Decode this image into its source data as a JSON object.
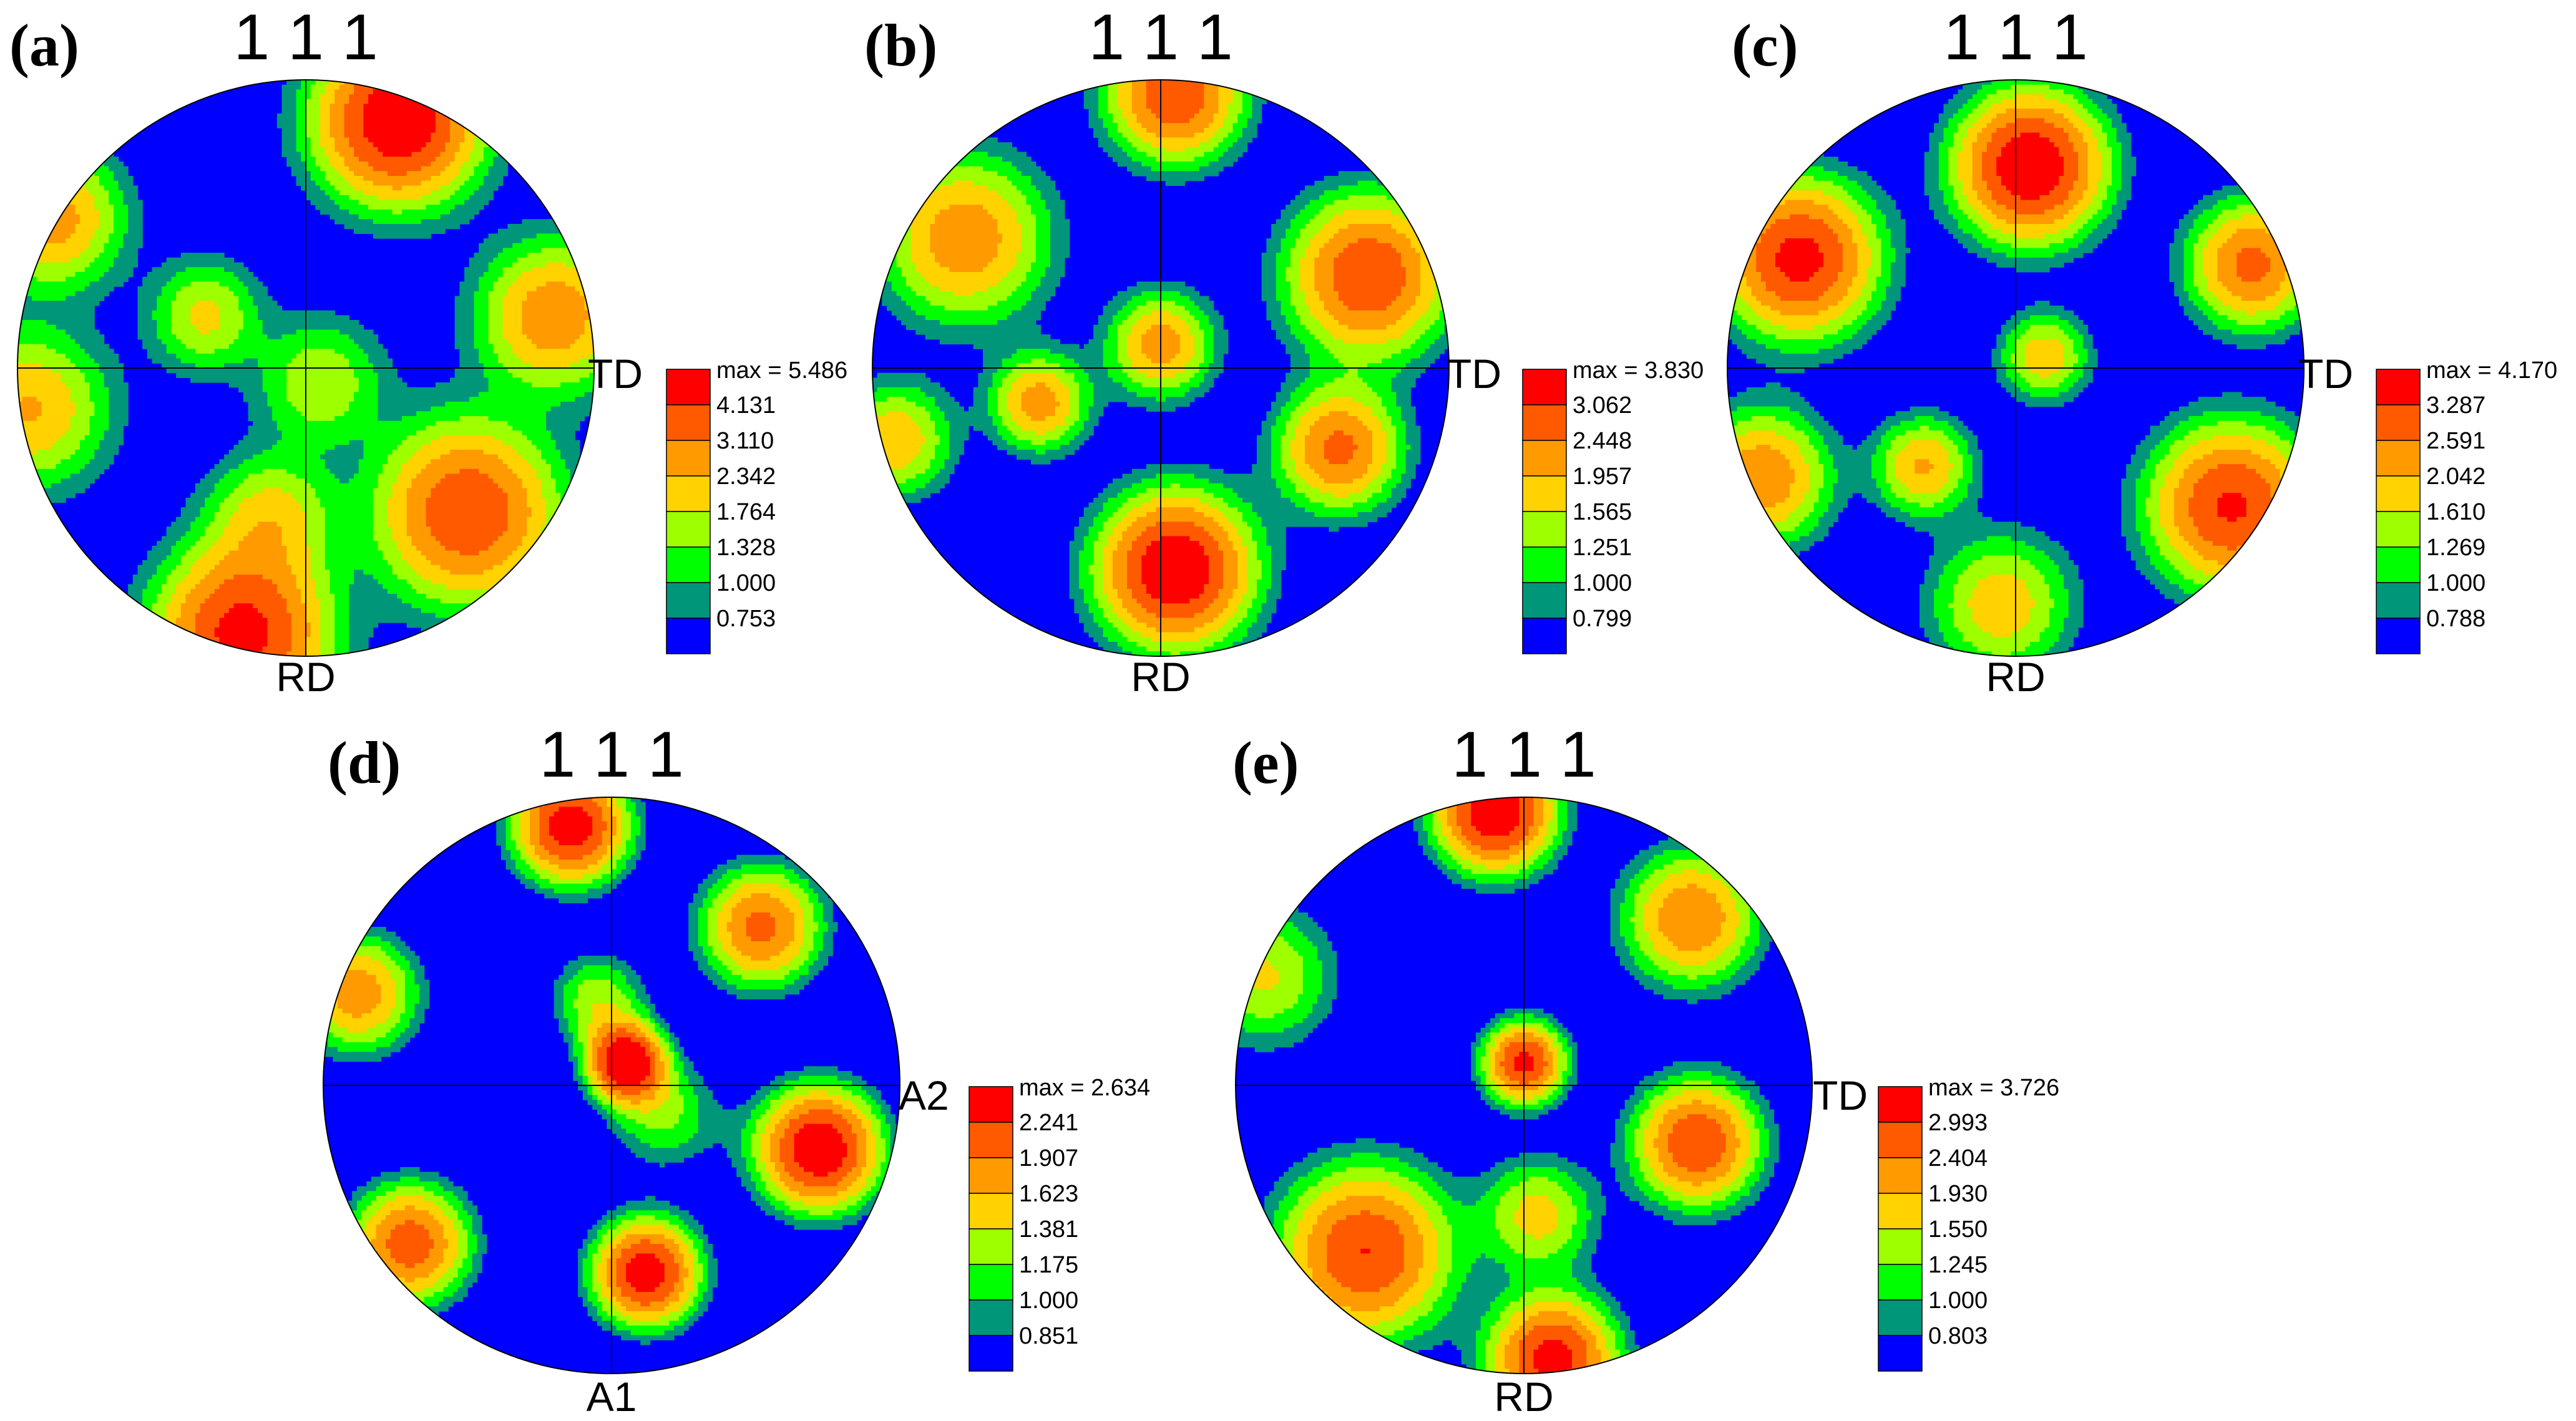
{
  "chart_data": [
    {
      "type": "heatmap",
      "panel_label": "(a)",
      "pole_label": "1 1 1",
      "axis_right": "TD",
      "axis_bottom": "RD",
      "legend_max": "max = 5.486",
      "levels": [
        "4.131",
        "3.110",
        "2.342",
        "1.764",
        "1.328",
        "1.000",
        "0.753"
      ],
      "peaks": [
        {
          "x": 0.32,
          "y": 0.86,
          "intensity": 5.3,
          "spread": 0.17
        },
        {
          "x": -0.22,
          "y": -0.92,
          "intensity": 4.6,
          "spread": 0.18
        },
        {
          "x": 0.56,
          "y": -0.5,
          "intensity": 4.0,
          "spread": 0.19
        },
        {
          "x": 0.86,
          "y": 0.18,
          "intensity": 2.9,
          "spread": 0.16
        },
        {
          "x": -0.88,
          "y": 0.52,
          "intensity": 2.7,
          "spread": 0.15
        },
        {
          "x": -0.96,
          "y": -0.14,
          "intensity": 2.4,
          "spread": 0.17
        },
        {
          "x": -0.35,
          "y": 0.18,
          "intensity": 1.9,
          "spread": 0.12
        },
        {
          "x": 0.05,
          "y": -0.05,
          "intensity": 1.7,
          "spread": 0.14
        },
        {
          "x": -0.12,
          "y": -0.52,
          "intensity": 2.0,
          "spread": 0.14
        }
      ]
    },
    {
      "type": "heatmap",
      "panel_label": "(b)",
      "pole_label": "1 1 1",
      "axis_right": "TD",
      "axis_bottom": "RD",
      "legend_max": "max = 3.830",
      "levels": [
        "3.062",
        "2.448",
        "1.957",
        "1.565",
        "1.251",
        "1.000",
        "0.799"
      ],
      "peaks": [
        {
          "x": 0.05,
          "y": -0.7,
          "intensity": 3.8,
          "spread": 0.17
        },
        {
          "x": 0.05,
          "y": 0.95,
          "intensity": 3.0,
          "spread": 0.15
        },
        {
          "x": 0.72,
          "y": 0.32,
          "intensity": 3.0,
          "spread": 0.18
        },
        {
          "x": 0.62,
          "y": -0.28,
          "intensity": 2.6,
          "spread": 0.14
        },
        {
          "x": -0.68,
          "y": 0.45,
          "intensity": 2.3,
          "spread": 0.19
        },
        {
          "x": -0.42,
          "y": -0.12,
          "intensity": 2.2,
          "spread": 0.11
        },
        {
          "x": -0.92,
          "y": -0.25,
          "intensity": 1.9,
          "spread": 0.13
        },
        {
          "x": 0.0,
          "y": 0.08,
          "intensity": 2.2,
          "spread": 0.12
        }
      ]
    },
    {
      "type": "heatmap",
      "panel_label": "(c)",
      "pole_label": "1 1 1",
      "axis_right": "TD",
      "axis_bottom": "RD",
      "legend_max": "max = 4.170",
      "levels": [
        "3.287",
        "2.591",
        "2.042",
        "1.610",
        "1.269",
        "1.000",
        "0.788"
      ],
      "peaks": [
        {
          "x": 0.05,
          "y": 0.7,
          "intensity": 4.1,
          "spread": 0.16
        },
        {
          "x": -0.75,
          "y": 0.38,
          "intensity": 3.6,
          "spread": 0.17
        },
        {
          "x": 0.75,
          "y": -0.48,
          "intensity": 3.4,
          "spread": 0.18
        },
        {
          "x": 0.82,
          "y": 0.36,
          "intensity": 2.8,
          "spread": 0.14
        },
        {
          "x": -0.88,
          "y": -0.38,
          "intensity": 2.5,
          "spread": 0.15
        },
        {
          "x": -0.32,
          "y": -0.34,
          "intensity": 2.1,
          "spread": 0.11
        },
        {
          "x": 0.1,
          "y": 0.04,
          "intensity": 1.9,
          "spread": 0.1
        },
        {
          "x": -0.05,
          "y": -0.82,
          "intensity": 1.9,
          "spread": 0.16
        }
      ]
    },
    {
      "type": "heatmap",
      "panel_label": "(d)",
      "pole_label": "1 1 1",
      "axis_right": "A2",
      "axis_bottom": "A1",
      "legend_max": "max = 2.634",
      "levels": [
        "2.241",
        "1.907",
        "1.623",
        "1.381",
        "1.175",
        "1.000",
        "0.851"
      ],
      "peaks": [
        {
          "x": 0.72,
          "y": -0.22,
          "intensity": 2.6,
          "spread": 0.15
        },
        {
          "x": 0.05,
          "y": 0.08,
          "intensity": 2.6,
          "spread": 0.09
        },
        {
          "x": -0.14,
          "y": 0.9,
          "intensity": 2.5,
          "spread": 0.14
        },
        {
          "x": 0.12,
          "y": -0.65,
          "intensity": 2.5,
          "spread": 0.13
        },
        {
          "x": -0.7,
          "y": -0.55,
          "intensity": 2.1,
          "spread": 0.15
        },
        {
          "x": 0.52,
          "y": 0.55,
          "intensity": 2.0,
          "spread": 0.15
        },
        {
          "x": -0.88,
          "y": 0.32,
          "intensity": 1.8,
          "spread": 0.15
        },
        {
          "x": -0.05,
          "y": 0.3,
          "intensity": 1.3,
          "spread": 0.12
        },
        {
          "x": 0.18,
          "y": -0.1,
          "intensity": 1.2,
          "spread": 0.14
        }
      ]
    },
    {
      "type": "heatmap",
      "panel_label": "(e)",
      "pole_label": "1 1 1",
      "axis_right": "TD",
      "axis_bottom": "RD",
      "legend_max": "max = 3.726",
      "levels": [
        "2.993",
        "2.404",
        "1.930",
        "1.550",
        "1.245",
        "1.000",
        "0.803"
      ],
      "peaks": [
        {
          "x": -0.1,
          "y": 0.95,
          "intensity": 3.7,
          "spread": 0.13
        },
        {
          "x": 0.1,
          "y": -0.95,
          "intensity": 3.3,
          "spread": 0.14
        },
        {
          "x": -0.55,
          "y": -0.58,
          "intensity": 3.0,
          "spread": 0.19
        },
        {
          "x": 0.6,
          "y": -0.2,
          "intensity": 2.9,
          "spread": 0.14
        },
        {
          "x": 0.58,
          "y": 0.58,
          "intensity": 2.4,
          "spread": 0.15
        },
        {
          "x": 0.0,
          "y": 0.08,
          "intensity": 3.2,
          "spread": 0.09
        },
        {
          "x": -0.9,
          "y": 0.38,
          "intensity": 1.6,
          "spread": 0.16
        },
        {
          "x": 0.05,
          "y": -0.45,
          "intensity": 1.7,
          "spread": 0.13
        }
      ]
    }
  ],
  "colors": {
    "scale": [
      "#ff0000",
      "#ff5a00",
      "#ff9a00",
      "#ffd200",
      "#9dff00",
      "#00ff00",
      "#00967a",
      "#0000ff"
    ],
    "background": "#ffffff",
    "text": "#000000"
  }
}
